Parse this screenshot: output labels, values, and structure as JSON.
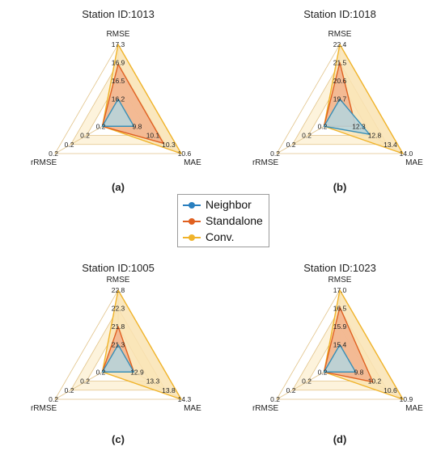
{
  "chart_data": [
    {
      "type": "radar",
      "title": "Station ID:1013",
      "panel_label": "(a)",
      "axes": [
        "RMSE",
        "MAE",
        "rRMSE"
      ],
      "ticks": {
        "RMSE": [
          "16.2",
          "16.5",
          "16.9",
          "17.3"
        ],
        "MAE": [
          "9.8",
          "10.1",
          "10.3",
          "10.6"
        ],
        "rRMSE": [
          "0.2",
          "0.2",
          "0.2",
          "0.2"
        ]
      },
      "series": [
        {
          "name": "Neighbor",
          "values": {
            "RMSE": 16.2,
            "MAE": 9.8,
            "rRMSE": 0.2
          }
        },
        {
          "name": "Standalone",
          "values": {
            "RMSE": 16.9,
            "MAE": 10.3,
            "rRMSE": 0.2
          }
        },
        {
          "name": "Conv.",
          "values": {
            "RMSE": 17.3,
            "MAE": 10.6,
            "rRMSE": 0.2
          }
        }
      ]
    },
    {
      "type": "radar",
      "title": "Station ID:1018",
      "panel_label": "(b)",
      "axes": [
        "RMSE",
        "MAE",
        "rRMSE"
      ],
      "ticks": {
        "RMSE": [
          "19.7",
          "20.6",
          "21.5",
          "22.4"
        ],
        "MAE": [
          "12.3",
          "12.8",
          "13.4",
          "14.0"
        ],
        "rRMSE": [
          "0.2",
          "0.2",
          "0.2",
          "0.2"
        ]
      },
      "series": [
        {
          "name": "Neighbor",
          "values": {
            "RMSE": 19.7,
            "MAE": 12.8,
            "rRMSE": 0.2
          }
        },
        {
          "name": "Standalone",
          "values": {
            "RMSE": 21.5,
            "MAE": 12.3,
            "rRMSE": 0.2
          }
        },
        {
          "name": "Conv.",
          "values": {
            "RMSE": 22.4,
            "MAE": 14.0,
            "rRMSE": 0.2
          }
        }
      ]
    },
    {
      "type": "radar",
      "title": "Station ID:1005",
      "panel_label": "(c)",
      "axes": [
        "RMSE",
        "MAE",
        "rRMSE"
      ],
      "ticks": {
        "RMSE": [
          "21.3",
          "21.8",
          "22.3",
          "22.8"
        ],
        "MAE": [
          "12.9",
          "13.3",
          "13.8",
          "14.3"
        ],
        "rRMSE": [
          "0.2",
          "0.2",
          "0.2",
          "0.2"
        ]
      },
      "series": [
        {
          "name": "Neighbor",
          "values": {
            "RMSE": 21.3,
            "MAE": 12.9,
            "rRMSE": 0.2
          }
        },
        {
          "name": "Standalone",
          "values": {
            "RMSE": 21.8,
            "MAE": 12.9,
            "rRMSE": 0.2
          }
        },
        {
          "name": "Conv.",
          "values": {
            "RMSE": 22.8,
            "MAE": 14.3,
            "rRMSE": 0.2
          }
        }
      ]
    },
    {
      "type": "radar",
      "title": "Station ID:1023",
      "panel_label": "(d)",
      "axes": [
        "RMSE",
        "MAE",
        "rRMSE"
      ],
      "ticks": {
        "RMSE": [
          "15.4",
          "15.9",
          "16.5",
          "17.0"
        ],
        "MAE": [
          "9.8",
          "10.2",
          "10.6",
          "10.9"
        ],
        "rRMSE": [
          "0.2",
          "0.2",
          "0.2",
          "0.2"
        ]
      },
      "series": [
        {
          "name": "Neighbor",
          "values": {
            "RMSE": 15.4,
            "MAE": 9.8,
            "rRMSE": 0.2
          }
        },
        {
          "name": "Standalone",
          "values": {
            "RMSE": 16.5,
            "MAE": 10.2,
            "rRMSE": 0.2
          }
        },
        {
          "name": "Conv.",
          "values": {
            "RMSE": 17.0,
            "MAE": 10.9,
            "rRMSE": 0.2
          }
        }
      ]
    }
  ],
  "legend": {
    "items": [
      {
        "label": "Neighbor",
        "color": "#2a7fbf"
      },
      {
        "label": "Standalone",
        "color": "#e06020"
      },
      {
        "label": "Conv.",
        "color": "#f0b32a"
      }
    ]
  },
  "colors": {
    "neighbor_fill": "#b8d4da",
    "standalone_fill": "#f2b58f",
    "conv_fill": "#f9e3b3",
    "grid": "#e2c48a"
  }
}
